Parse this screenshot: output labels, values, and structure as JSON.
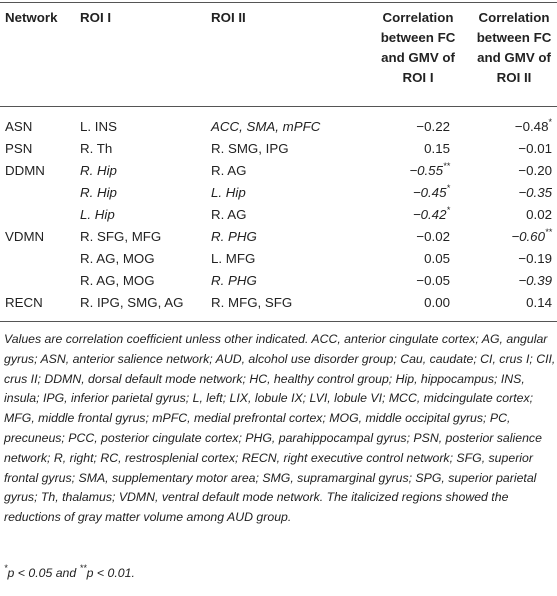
{
  "headers": {
    "network": "Network",
    "roi1": "ROI I",
    "roi2": "ROI II",
    "corr1": [
      "Correlation",
      "between FC",
      "and GMV of",
      "ROI I"
    ],
    "corr2": [
      "Correlation",
      "between FC",
      "and GMV of",
      "ROI II"
    ]
  },
  "rows": [
    {
      "network": "ASN",
      "roi1": "L. INS",
      "roi2": "ACC, SMA, mPFC",
      "v1": "−0.22",
      "v2": "−0.48",
      "v2_sup": "*"
    },
    {
      "network": "PSN",
      "roi1": "R. Th",
      "roi2": "R. SMG, IPG",
      "v1": "0.15",
      "v2": "−0.01"
    },
    {
      "network": "DDMN",
      "roi1": "R. Hip",
      "roi2": "R. AG",
      "v1": "−0.55",
      "v1_sup": "**",
      "v2": "−0.20"
    },
    {
      "network": "",
      "roi1": "R. Hip",
      "roi2": "L. Hip",
      "v1": "−0.45",
      "v1_sup": "*",
      "v2": "−0.35"
    },
    {
      "network": "",
      "roi1": "L. Hip",
      "roi2": "R. AG",
      "v1": "−0.42",
      "v1_sup": "*",
      "v2": "0.02"
    },
    {
      "network": "VDMN",
      "roi1": "R. SFG, MFG",
      "roi2": "R. PHG",
      "v1": "−0.02",
      "v2": "−0.60",
      "v2_sup": "**"
    },
    {
      "network": "",
      "roi1": "R. AG, MOG",
      "roi2": "L. MFG",
      "v1": "0.05",
      "v2": "−0.19"
    },
    {
      "network": "",
      "roi1": "R. AG, MOG",
      "roi2": "R. PHG",
      "v1": "−0.05",
      "v2": "−0.39"
    },
    {
      "network": "RECN",
      "roi1": "R. IPG, SMG, AG",
      "roi2": "R. MFG, SFG",
      "v1": "0.00",
      "v2": "0.14"
    }
  ],
  "footnote": "Values are correlation coefficient unless other indicated. ACC, anterior cingulate cortex; AG, angular gyrus; ASN, anterior salience network; AUD, alcohol use disorder group; Cau, caudate; CI, crus I; CII, crus II; DDMN, dorsal default mode network; HC, healthy control group; Hip, hippocampus; INS, insula; IPG, inferior parietal gyrus; L, left; LIX, lobule IX; LVI, lobule VI; MCC, midcingulate cortex; MFG, middle frontal gyrus; mPFC, medial prefrontal cortex; MOG, middle occipital gyrus; PC, precuneus; PCC, posterior cingulate cortex; PHG, parahippocampal gyrus; PSN, posterior salience network; R, right; RC, restrosplenial cortex; RECN, right executive control network; SFG, superior frontal gyrus; SMA, supplementary motor area; SMG, supramarginal gyrus; SPG, superior parietal gyrus; Th, thalamus; VDMN, ventral default mode network. The italicized regions showed the reductions of gray matter volume among AUD group.",
  "sig": {
    "s1": "*",
    "t1": "p < 0.05 and ",
    "s2": "**",
    "t2": "p < 0.01."
  },
  "colors": {
    "rule": "#555555",
    "text": "#222222"
  }
}
